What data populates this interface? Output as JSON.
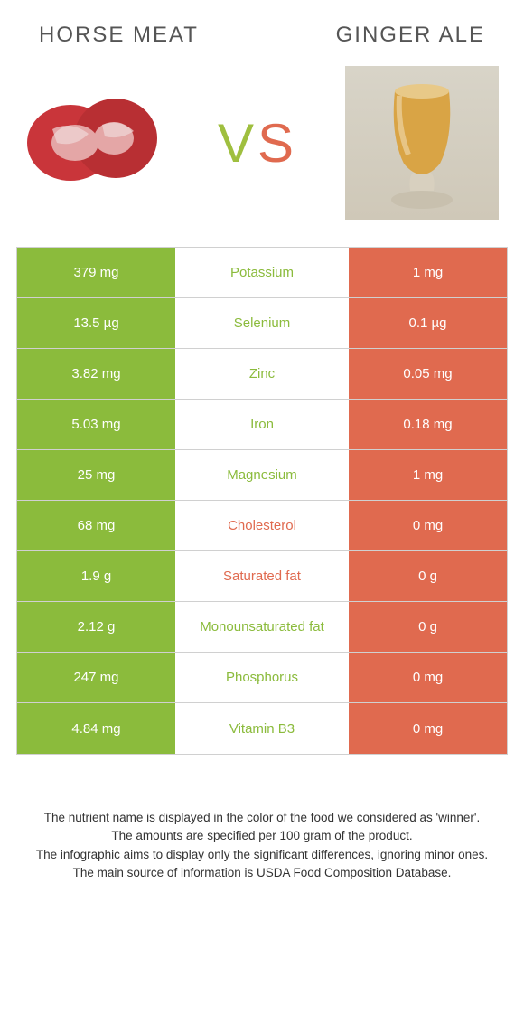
{
  "food_left": "Horse meat",
  "food_right": "Ginger ale",
  "vs": {
    "v": "V",
    "s": "S"
  },
  "colors": {
    "green": "#8bbb3c",
    "orange": "#e06a4f"
  },
  "rows": [
    {
      "left": "379 mg",
      "label": "Potassium",
      "right": "1 mg",
      "winner": "left"
    },
    {
      "left": "13.5 µg",
      "label": "Selenium",
      "right": "0.1 µg",
      "winner": "left"
    },
    {
      "left": "3.82 mg",
      "label": "Zinc",
      "right": "0.05 mg",
      "winner": "left"
    },
    {
      "left": "5.03 mg",
      "label": "Iron",
      "right": "0.18 mg",
      "winner": "left"
    },
    {
      "left": "25 mg",
      "label": "Magnesium",
      "right": "1 mg",
      "winner": "left"
    },
    {
      "left": "68 mg",
      "label": "Cholesterol",
      "right": "0 mg",
      "winner": "right"
    },
    {
      "left": "1.9 g",
      "label": "Saturated fat",
      "right": "0 g",
      "winner": "right"
    },
    {
      "left": "2.12 g",
      "label": "Monounsaturated fat",
      "right": "0 g",
      "winner": "left"
    },
    {
      "left": "247 mg",
      "label": "Phosphorus",
      "right": "0 mg",
      "winner": "left"
    },
    {
      "left": "4.84 mg",
      "label": "Vitamin B3",
      "right": "0 mg",
      "winner": "left"
    }
  ],
  "footer": {
    "l1": "The nutrient name is displayed in the color of the food we considered as 'winner'.",
    "l2": "The amounts are specified per 100 gram of the product.",
    "l3": "The infographic aims to display only the significant differences, ignoring minor ones.",
    "l4": "The main source of information is USDA Food Composition Database."
  }
}
